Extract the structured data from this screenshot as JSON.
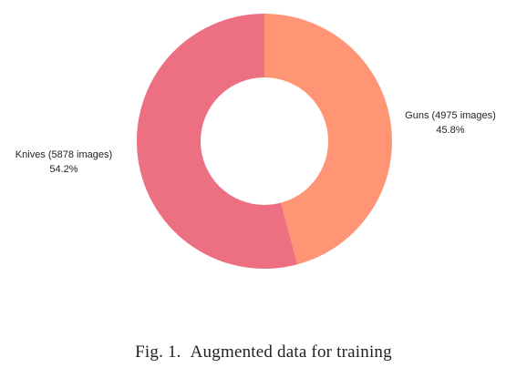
{
  "caption": {
    "number": "Fig. 1.",
    "text": "Augmented data for training"
  },
  "chart_data": {
    "type": "pie",
    "style": "donut",
    "slices": [
      {
        "label": "Guns (4975 images)",
        "percent_label": "45.8%",
        "value": 4975,
        "color": "#FF9575"
      },
      {
        "label": "Knives (5878 images)",
        "percent_label": "54.2%",
        "value": 5878,
        "color": "#EC7082"
      }
    ],
    "title": "",
    "legend": "none"
  }
}
